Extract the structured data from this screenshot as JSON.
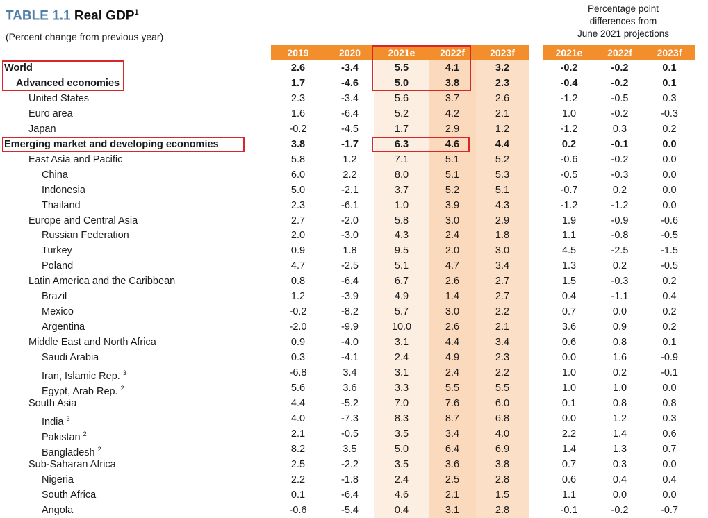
{
  "header": {
    "table_label": "TABLE 1.1",
    "table_name": "Real GDP",
    "footnote_mark": "1",
    "subtitle": "(Percent change from previous year)",
    "diff_note": [
      "Percentage point",
      "differences from",
      "June 2021 projections"
    ]
  },
  "columns": [
    "2019",
    "2020",
    "2021e",
    "2022f",
    "2023f"
  ],
  "diff_columns": [
    "2021e",
    "2022f",
    "2023f"
  ],
  "colors": {
    "header_orange": "#f28e2c",
    "title_blue": "#4f7ea7",
    "highlight_red": "#d9262b",
    "shade_light": "#fdeee2",
    "shade_mid": "#fbd9bd"
  },
  "rows": [
    {
      "label": "World",
      "level": 0,
      "bold": true,
      "note": "",
      "values": [
        "2.6",
        "-3.4",
        "5.5",
        "4.1",
        "3.2"
      ],
      "diffs": [
        "-0.2",
        "-0.2",
        "0.1"
      ]
    },
    {
      "label": "Advanced economies",
      "level": 1,
      "bold": true,
      "note": "",
      "values": [
        "1.7",
        "-4.6",
        "5.0",
        "3.8",
        "2.3"
      ],
      "diffs": [
        "-0.4",
        "-0.2",
        "0.1"
      ]
    },
    {
      "label": "United States",
      "level": 1,
      "bold": false,
      "note": "",
      "values": [
        "2.3",
        "-3.4",
        "5.6",
        "3.7",
        "2.6"
      ],
      "diffs": [
        "-1.2",
        "-0.5",
        "0.3"
      ]
    },
    {
      "label": "Euro area",
      "level": 1,
      "bold": false,
      "note": "",
      "values": [
        "1.6",
        "-6.4",
        "5.2",
        "4.2",
        "2.1"
      ],
      "diffs": [
        "1.0",
        "-0.2",
        "-0.3"
      ]
    },
    {
      "label": "Japan",
      "level": 1,
      "bold": false,
      "note": "",
      "values": [
        "-0.2",
        "-4.5",
        "1.7",
        "2.9",
        "1.2"
      ],
      "diffs": [
        "-1.2",
        "0.3",
        "0.2"
      ]
    },
    {
      "label": "Emerging market and developing economies",
      "level": 0,
      "bold": true,
      "note": "",
      "values": [
        "3.8",
        "-1.7",
        "6.3",
        "4.6",
        "4.4"
      ],
      "diffs": [
        "0.2",
        "-0.1",
        "0.0"
      ]
    },
    {
      "label": "East Asia and Pacific",
      "level": 1,
      "bold": false,
      "note": "",
      "values": [
        "5.8",
        "1.2",
        "7.1",
        "5.1",
        "5.2"
      ],
      "diffs": [
        "-0.6",
        "-0.2",
        "0.0"
      ]
    },
    {
      "label": "China",
      "level": 2,
      "bold": false,
      "note": "",
      "values": [
        "6.0",
        "2.2",
        "8.0",
        "5.1",
        "5.3"
      ],
      "diffs": [
        "-0.5",
        "-0.3",
        "0.0"
      ]
    },
    {
      "label": "Indonesia",
      "level": 2,
      "bold": false,
      "note": "",
      "values": [
        "5.0",
        "-2.1",
        "3.7",
        "5.2",
        "5.1"
      ],
      "diffs": [
        "-0.7",
        "0.2",
        "0.0"
      ]
    },
    {
      "label": "Thailand",
      "level": 2,
      "bold": false,
      "note": "",
      "values": [
        "2.3",
        "-6.1",
        "1.0",
        "3.9",
        "4.3"
      ],
      "diffs": [
        "-1.2",
        "-1.2",
        "0.0"
      ]
    },
    {
      "label": "Europe and Central Asia",
      "level": 1,
      "bold": false,
      "note": "",
      "values": [
        "2.7",
        "-2.0",
        "5.8",
        "3.0",
        "2.9"
      ],
      "diffs": [
        "1.9",
        "-0.9",
        "-0.6"
      ]
    },
    {
      "label": "Russian Federation",
      "level": 2,
      "bold": false,
      "note": "",
      "values": [
        "2.0",
        "-3.0",
        "4.3",
        "2.4",
        "1.8"
      ],
      "diffs": [
        "1.1",
        "-0.8",
        "-0.5"
      ]
    },
    {
      "label": "Turkey",
      "level": 2,
      "bold": false,
      "note": "",
      "values": [
        "0.9",
        "1.8",
        "9.5",
        "2.0",
        "3.0"
      ],
      "diffs": [
        "4.5",
        "-2.5",
        "-1.5"
      ]
    },
    {
      "label": "Poland",
      "level": 2,
      "bold": false,
      "note": "",
      "values": [
        "4.7",
        "-2.5",
        "5.1",
        "4.7",
        "3.4"
      ],
      "diffs": [
        "1.3",
        "0.2",
        "-0.5"
      ]
    },
    {
      "label": "Latin America and the Caribbean",
      "level": 1,
      "bold": false,
      "note": "",
      "values": [
        "0.8",
        "-6.4",
        "6.7",
        "2.6",
        "2.7"
      ],
      "diffs": [
        "1.5",
        "-0.3",
        "0.2"
      ]
    },
    {
      "label": "Brazil",
      "level": 2,
      "bold": false,
      "note": "",
      "values": [
        "1.2",
        "-3.9",
        "4.9",
        "1.4",
        "2.7"
      ],
      "diffs": [
        "0.4",
        "-1.1",
        "0.4"
      ]
    },
    {
      "label": "Mexico",
      "level": 2,
      "bold": false,
      "note": "",
      "values": [
        "-0.2",
        "-8.2",
        "5.7",
        "3.0",
        "2.2"
      ],
      "diffs": [
        "0.7",
        "0.0",
        "0.2"
      ]
    },
    {
      "label": "Argentina",
      "level": 2,
      "bold": false,
      "note": "",
      "values": [
        "-2.0",
        "-9.9",
        "10.0",
        "2.6",
        "2.1"
      ],
      "diffs": [
        "3.6",
        "0.9",
        "0.2"
      ]
    },
    {
      "label": "Middle East and North Africa",
      "level": 1,
      "bold": false,
      "note": "",
      "values": [
        "0.9",
        "-4.0",
        "3.1",
        "4.4",
        "3.4"
      ],
      "diffs": [
        "0.6",
        "0.8",
        "0.1"
      ]
    },
    {
      "label": "Saudi Arabia",
      "level": 2,
      "bold": false,
      "note": "",
      "values": [
        "0.3",
        "-4.1",
        "2.4",
        "4.9",
        "2.3"
      ],
      "diffs": [
        "0.0",
        "1.6",
        "-0.9"
      ]
    },
    {
      "label": "Iran, Islamic Rep.",
      "level": 2,
      "bold": false,
      "note": "3",
      "values": [
        "-6.8",
        "3.4",
        "3.1",
        "2.4",
        "2.2"
      ],
      "diffs": [
        "1.0",
        "0.2",
        "-0.1"
      ]
    },
    {
      "label": "Egypt, Arab Rep.",
      "level": 2,
      "bold": false,
      "note": "2",
      "values": [
        "5.6",
        "3.6",
        "3.3",
        "5.5",
        "5.5"
      ],
      "diffs": [
        "1.0",
        "1.0",
        "0.0"
      ]
    },
    {
      "label": "South Asia",
      "level": 1,
      "bold": false,
      "note": "",
      "values": [
        "4.4",
        "-5.2",
        "7.0",
        "7.6",
        "6.0"
      ],
      "diffs": [
        "0.1",
        "0.8",
        "0.8"
      ]
    },
    {
      "label": "India",
      "level": 2,
      "bold": false,
      "note": "3",
      "values": [
        "4.0",
        "-7.3",
        "8.3",
        "8.7",
        "6.8"
      ],
      "diffs": [
        "0.0",
        "1.2",
        "0.3"
      ]
    },
    {
      "label": "Pakistan",
      "level": 2,
      "bold": false,
      "note": "2",
      "values": [
        "2.1",
        "-0.5",
        "3.5",
        "3.4",
        "4.0"
      ],
      "diffs": [
        "2.2",
        "1.4",
        "0.6"
      ]
    },
    {
      "label": "Bangladesh",
      "level": 2,
      "bold": false,
      "note": "2",
      "values": [
        "8.2",
        "3.5",
        "5.0",
        "6.4",
        "6.9"
      ],
      "diffs": [
        "1.4",
        "1.3",
        "0.7"
      ]
    },
    {
      "label": "Sub-Saharan Africa",
      "level": 1,
      "bold": false,
      "note": "",
      "values": [
        "2.5",
        "-2.2",
        "3.5",
        "3.6",
        "3.8"
      ],
      "diffs": [
        "0.7",
        "0.3",
        "0.0"
      ]
    },
    {
      "label": "Nigeria",
      "level": 2,
      "bold": false,
      "note": "",
      "values": [
        "2.2",
        "-1.8",
        "2.4",
        "2.5",
        "2.8"
      ],
      "diffs": [
        "0.6",
        "0.4",
        "0.4"
      ]
    },
    {
      "label": "South Africa",
      "level": 2,
      "bold": false,
      "note": "",
      "values": [
        "0.1",
        "-6.4",
        "4.6",
        "2.1",
        "1.5"
      ],
      "diffs": [
        "1.1",
        "0.0",
        "0.0"
      ]
    },
    {
      "label": "Angola",
      "level": 2,
      "bold": false,
      "note": "",
      "values": [
        "-0.6",
        "-5.4",
        "0.4",
        "3.1",
        "2.8"
      ],
      "diffs": [
        "-0.1",
        "-0.2",
        "-0.7"
      ]
    }
  ]
}
